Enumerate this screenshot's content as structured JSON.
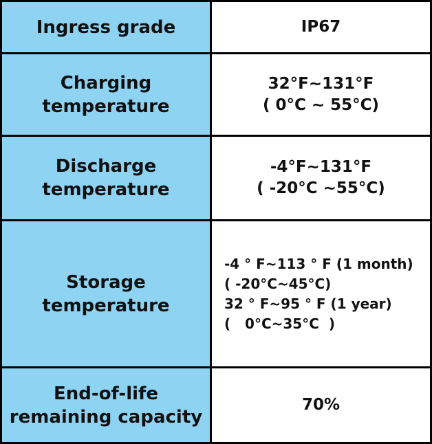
{
  "rows": [
    {
      "label_lines": [
        "Ingress grade"
      ],
      "value_lines": [
        "IP67"
      ]
    },
    {
      "label_lines": [
        "Charging",
        "temperature"
      ],
      "value_lines": [
        "32°F~131°F",
        "( 0°C ~ 55°C)"
      ]
    },
    {
      "label_lines": [
        "Discharge",
        "temperature"
      ],
      "value_lines": [
        "-4°F~131°F",
        "( -20°C ~55°C)"
      ]
    },
    {
      "label_lines": [
        "Storage",
        "temperature"
      ],
      "value_lines": [
        "-4 ° F~113 ° F (1 month)",
        "( -20°C~45°C)",
        "32 ° F~95 ° F (1 year)",
        "(   0°C~35°C  )"
      ]
    },
    {
      "label_lines": [
        "End-of-life",
        "remaining capacity"
      ],
      "value_lines": [
        "70%"
      ]
    }
  ],
  "colors": {
    "label_background": "#8fd3f2",
    "border": "#000000"
  }
}
